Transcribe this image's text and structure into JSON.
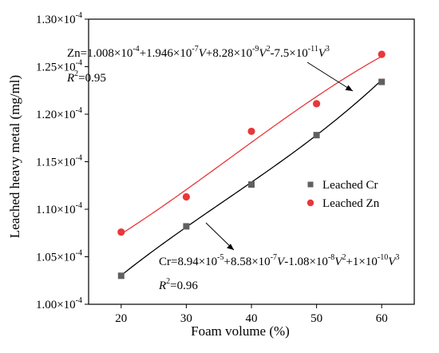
{
  "chart_data": {
    "type": "scatter",
    "xlabel": "Foam volume (%)",
    "ylabel": "Leached heavy metal (mg/ml)",
    "xlim": [
      15,
      65
    ],
    "ylim": [
      0.0001,
      0.00013
    ],
    "x_ticks": [
      20,
      30,
      40,
      50,
      60
    ],
    "x_tick_labels": [
      "20",
      "30",
      "40",
      "50",
      "60"
    ],
    "y_ticks": [
      0.0001,
      0.000105,
      0.00011,
      0.000115,
      0.00012,
      0.000125,
      0.00013
    ],
    "y_tick_labels": [
      "1.00×10",
      "1.05×10",
      "1.10×10",
      "1.15×10",
      "1.20×10",
      "1.25×10",
      "1.30×10"
    ],
    "y_tick_exponent": "-4",
    "grid": false,
    "legend_position": "center-right",
    "series": [
      {
        "name": "Leached Cr",
        "marker": "square",
        "marker_color": "#606060",
        "x": [
          20,
          30,
          40,
          50,
          60
        ],
        "y": [
          0.000103,
          0.0001082,
          0.0001126,
          0.0001178,
          0.0001234
        ],
        "fit": {
          "a0": 8.94e-05,
          "a1": 8.58e-07,
          "a2": -1.08e-08,
          "a3": 1e-10
        },
        "fit_color": "#000000"
      },
      {
        "name": "Leached Zn",
        "marker": "circle",
        "marker_color": "#e8373a",
        "x": [
          20,
          30,
          40,
          50,
          60
        ],
        "y": [
          0.0001076,
          0.0001113,
          0.0001182,
          0.0001211,
          0.0001263
        ],
        "fit": {
          "a0": 0.0001008,
          "a1": 1.946e-07,
          "a2": 8.28e-09,
          "a3": -7.5e-11
        },
        "fit_color": "#e8373a"
      }
    ],
    "annotations": {
      "zn_equation": [
        {
          "t": "Zn=1.008×10"
        },
        {
          "t": "-4",
          "sup": true
        },
        {
          "t": "+1.946×10"
        },
        {
          "t": "-7",
          "sup": true
        },
        {
          "t": "V",
          "italic": true
        },
        {
          "t": "+8.28×10"
        },
        {
          "t": "-9",
          "sup": true
        },
        {
          "t": "V",
          "italic": true
        },
        {
          "t": "2",
          "sup": true
        },
        {
          "t": "-7.5×10"
        },
        {
          "t": "-11",
          "sup": true
        },
        {
          "t": "V",
          "italic": true
        },
        {
          "t": "3",
          "sup": true
        }
      ],
      "zn_r2": [
        {
          "t": "R",
          "italic": true
        },
        {
          "t": "2",
          "sup": true
        },
        {
          "t": "=0.95"
        }
      ],
      "cr_equation": [
        {
          "t": "Cr=8.94×10"
        },
        {
          "t": "-5",
          "sup": true
        },
        {
          "t": "+8.58×10"
        },
        {
          "t": "-7",
          "sup": true
        },
        {
          "t": "V",
          "italic": true
        },
        {
          "t": "-1.08×10"
        },
        {
          "t": "-8",
          "sup": true
        },
        {
          "t": "V",
          "italic": true
        },
        {
          "t": "2",
          "sup": true
        },
        {
          "t": "+1×10"
        },
        {
          "t": "-10",
          "sup": true
        },
        {
          "t": "V",
          "italic": true
        },
        {
          "t": "3",
          "sup": true
        }
      ],
      "cr_r2": [
        {
          "t": "R",
          "italic": true
        },
        {
          "t": "2",
          "sup": true
        },
        {
          "t": "=0.96"
        }
      ]
    }
  }
}
